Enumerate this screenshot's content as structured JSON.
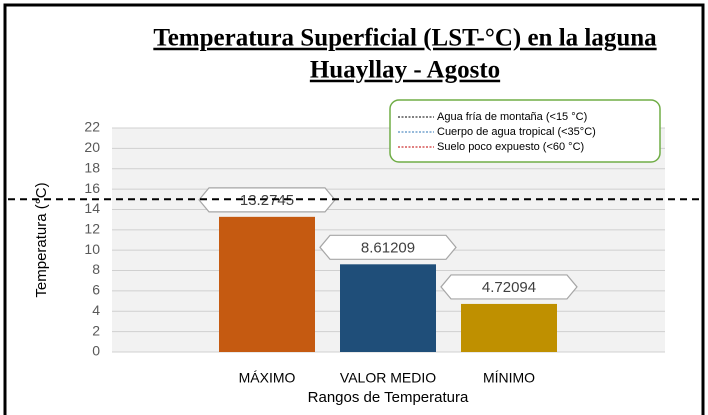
{
  "chart_data": {
    "type": "bar",
    "title": [
      "Temperatura  Superficial (LST-°C) en la laguna",
      "Huayllay - Agosto"
    ],
    "x_label": "Rangos de Temperatura",
    "y_label": "Temperatura (°C)",
    "categories": [
      "MÁXIMO",
      "VALOR MEDIO",
      "MÍNIMO"
    ],
    "values": [
      13.2745,
      8.61209,
      4.72094
    ],
    "colors": [
      "#c55a11",
      "#1f4e79",
      "#bf9000"
    ],
    "ylim": [
      0,
      22
    ],
    "yticks": [
      0,
      2,
      4,
      6,
      8,
      10,
      12,
      14,
      16,
      18,
      20,
      22
    ],
    "grid": true,
    "reference_line": {
      "value": 15,
      "color": "#000000"
    },
    "legend": [
      {
        "name": "Agua fría de montaña (<15 °C)",
        "color": "#000000"
      },
      {
        "name": "Cuerpo de agua tropical (<35°C)",
        "color": "#2e75b6"
      },
      {
        "name": "Suelo poco expuesto (<60 °C)",
        "color": "#c00000"
      }
    ]
  }
}
